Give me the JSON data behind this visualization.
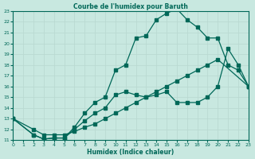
{
  "title": "Courbe de l'humidex pour Baruth",
  "xlabel": "Humidex (Indice chaleur)",
  "bg_color": "#c8e8e0",
  "grid_color": "#b8d8d0",
  "line_color": "#006858",
  "xlim": [
    0,
    23
  ],
  "ylim": [
    11,
    23
  ],
  "xticks": [
    0,
    1,
    2,
    3,
    4,
    5,
    6,
    7,
    8,
    9,
    10,
    11,
    12,
    13,
    14,
    15,
    16,
    17,
    18,
    19,
    20,
    21,
    22,
    23
  ],
  "yticks": [
    11,
    12,
    13,
    14,
    15,
    16,
    17,
    18,
    19,
    20,
    21,
    22,
    23
  ],
  "line_top_x": [
    0,
    2,
    3,
    4,
    5,
    6,
    7,
    8,
    9,
    10,
    11,
    12,
    13,
    14,
    15,
    16,
    17,
    18,
    19,
    20,
    21,
    22,
    23
  ],
  "line_top_y": [
    13,
    11.5,
    11.1,
    11.2,
    11.2,
    12.2,
    13.5,
    14.5,
    15.0,
    17.5,
    18.0,
    20.5,
    20.7,
    22.2,
    22.8,
    23.2,
    22.2,
    21.5,
    20.5,
    20.5,
    18.0,
    17.5,
    16.0
  ],
  "line_mid_x": [
    0,
    2,
    3,
    4,
    5,
    6,
    7,
    8,
    9,
    10,
    11,
    12,
    13,
    14,
    15,
    16,
    17,
    18,
    19,
    20,
    21,
    22,
    23
  ],
  "line_mid_y": [
    13,
    11.5,
    11.1,
    11.2,
    11.2,
    12.0,
    12.8,
    13.5,
    14.0,
    15.2,
    15.5,
    15.2,
    15.0,
    15.2,
    15.5,
    14.5,
    14.5,
    14.5,
    15.0,
    16.0,
    19.5,
    18.0,
    16.0
  ],
  "line_bot_x": [
    0,
    2,
    3,
    4,
    5,
    6,
    7,
    8,
    9,
    10,
    11,
    12,
    13,
    14,
    15,
    16,
    17,
    18,
    19,
    20,
    23
  ],
  "line_bot_y": [
    13,
    12.0,
    11.5,
    11.5,
    11.5,
    11.8,
    12.2,
    12.5,
    13.0,
    13.5,
    14.0,
    14.5,
    15.0,
    15.5,
    16.0,
    16.5,
    17.0,
    17.5,
    18.0,
    18.5,
    16.0
  ]
}
